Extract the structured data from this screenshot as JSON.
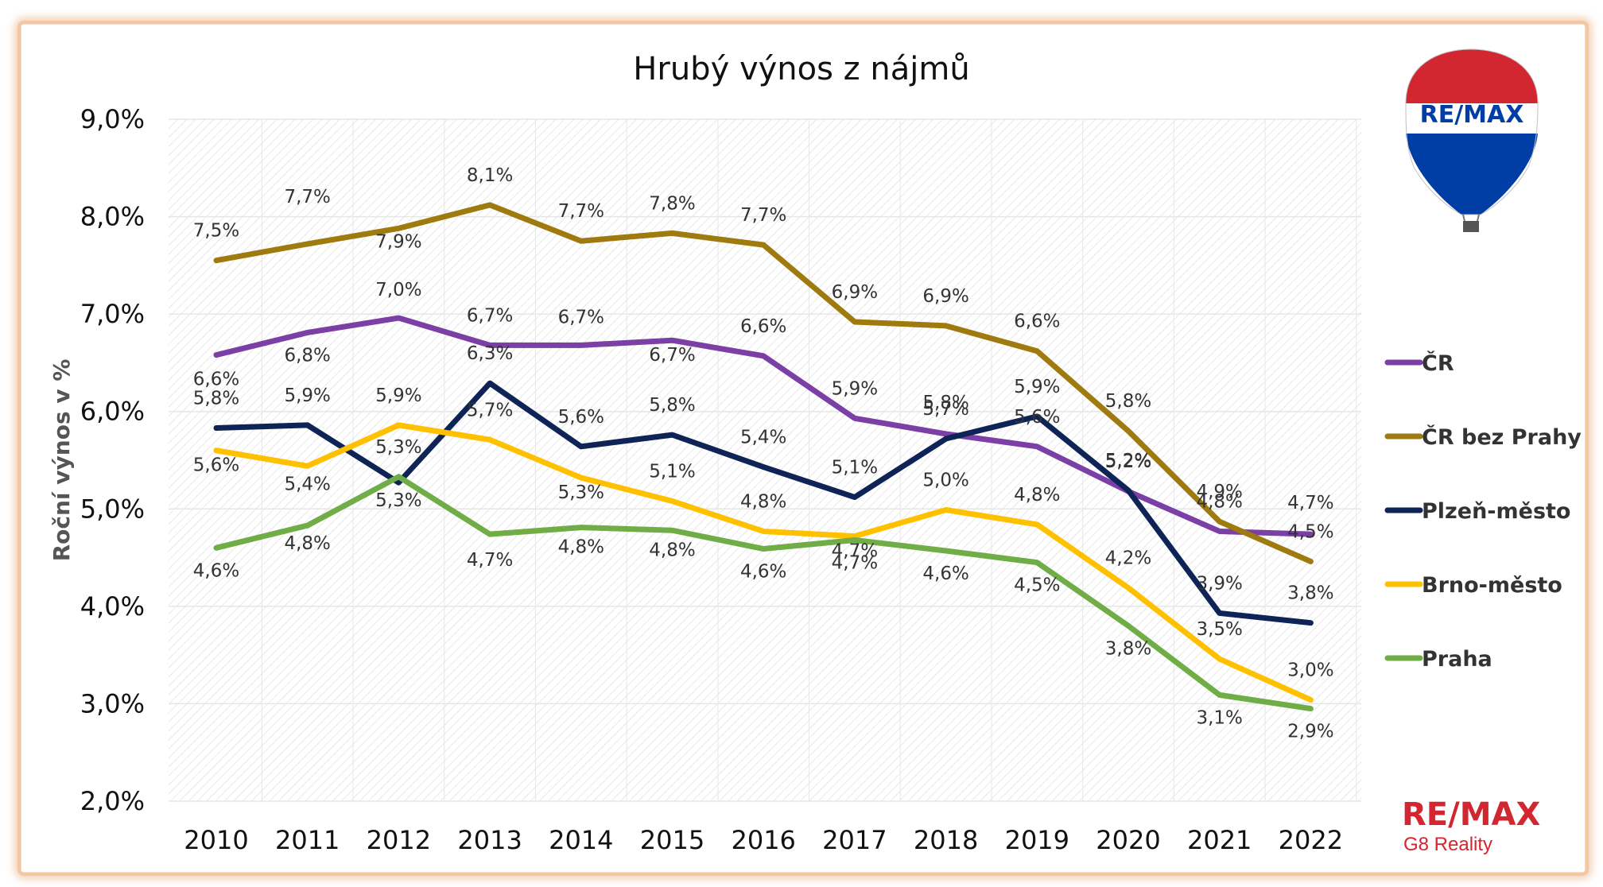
{
  "chart_data": {
    "type": "line",
    "title": "Hrubý výnos z nájmů",
    "ylabel": "Roční výnos v %",
    "xlabel": "",
    "x": [
      "2010",
      "2011",
      "2012",
      "2013",
      "2014",
      "2015",
      "2016",
      "2017",
      "2018",
      "2019",
      "2020",
      "2021",
      "2022"
    ],
    "ylim": [
      2.0,
      9.0
    ],
    "yticks": [
      "2,0%",
      "3,0%",
      "4,0%",
      "5,0%",
      "6,0%",
      "7,0%",
      "8,0%",
      "9,0%"
    ],
    "grid": true,
    "legend_position": "right",
    "series": [
      {
        "name": "ČR",
        "color": "#7b3fa6",
        "values": [
          6.58,
          6.81,
          6.96,
          6.68,
          6.68,
          6.73,
          6.57,
          5.93,
          5.77,
          5.64,
          5.18,
          4.77,
          4.74
        ],
        "labels": [
          "6,6%",
          "6,8%",
          "7,0%",
          "6,7%",
          "6,7%",
          "6,7%",
          "6,6%",
          "5,9%",
          "5,8%",
          "5,6%",
          "5,2%",
          "4,8%",
          "4,7%"
        ]
      },
      {
        "name": "ČR bez Prahy",
        "color": "#9e7a0f",
        "values": [
          7.55,
          7.72,
          7.88,
          8.12,
          7.75,
          7.83,
          7.71,
          6.92,
          6.88,
          6.62,
          5.8,
          4.87,
          4.46
        ],
        "labels": [
          "7,5%",
          "7,7%",
          "7,9%",
          "8,1%",
          "7,7%",
          "7,8%",
          "7,7%",
          "6,9%",
          "6,9%",
          "6,6%",
          "5,8%",
          "4,9%",
          "4,5%"
        ]
      },
      {
        "name": "Plzeň-město",
        "color": "#0e2356",
        "values": [
          5.83,
          5.86,
          5.27,
          6.29,
          5.64,
          5.76,
          5.43,
          5.12,
          5.72,
          5.95,
          5.19,
          3.93,
          3.83
        ],
        "labels": [
          "5,8%",
          "5,9%",
          "5,3%",
          "6,3%",
          "5,6%",
          "5,8%",
          "5,4%",
          "5,1%",
          "5,7%",
          "5,9%",
          "5,2%",
          "3,9%",
          "3,8%"
        ]
      },
      {
        "name": "Brno-město",
        "color": "#ffc000",
        "values": [
          5.6,
          5.44,
          5.86,
          5.71,
          5.32,
          5.08,
          4.77,
          4.72,
          4.99,
          4.84,
          4.19,
          3.46,
          3.04
        ],
        "labels": [
          "5,6%",
          "5,4%",
          "5,9%",
          "5,7%",
          "5,3%",
          "5,1%",
          "4,8%",
          "4,7%",
          "5,0%",
          "4,8%",
          "4,2%",
          "3,5%",
          "3,0%"
        ]
      },
      {
        "name": "Praha",
        "color": "#70ad47",
        "values": [
          4.6,
          4.83,
          5.33,
          4.74,
          4.81,
          4.78,
          4.59,
          4.68,
          4.57,
          4.45,
          3.8,
          3.09,
          2.95
        ],
        "labels": [
          "4,6%",
          "4,8%",
          "5,3%",
          "4,7%",
          "4,8%",
          "4,8%",
          "4,6%",
          "4,7%",
          "4,6%",
          "4,5%",
          "3,8%",
          "3,1%",
          "2,9%"
        ]
      }
    ]
  },
  "branding": {
    "balloon_text": "RE/MAX",
    "logo_text": "RE/MAX",
    "logo_sub": "G8 Reality",
    "red": "#d22630",
    "blue": "#003da5"
  }
}
